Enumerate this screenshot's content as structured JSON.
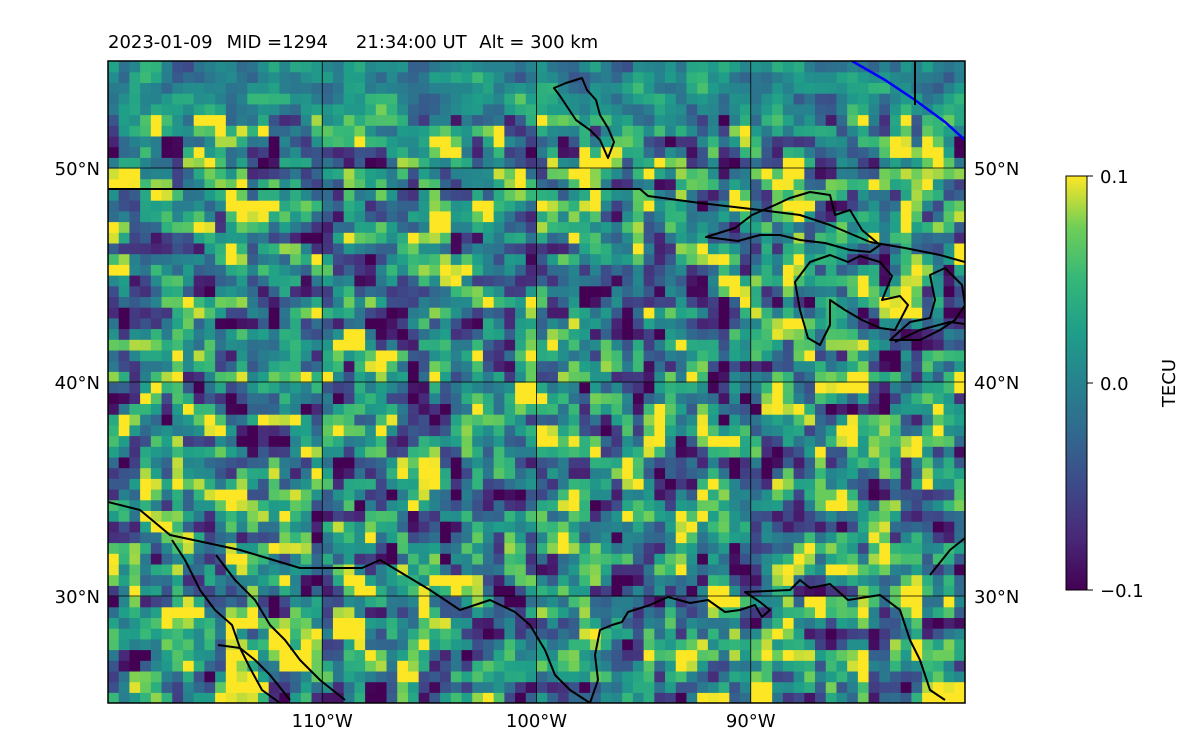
{
  "header": {
    "date": "2023-01-09",
    "mid": "MID =1294",
    "time": "21:34:00  UT",
    "alt": "Alt = 300 km"
  },
  "chart_data": {
    "type": "heatmap",
    "title": "2023-01-09  MID =1294    21:34:00  UT  Alt = 300 km",
    "x_axis": {
      "range": [
        -120,
        -80
      ],
      "ticks": [
        -110,
        -100,
        -90
      ],
      "tick_labels": [
        "110°W",
        "100°W",
        "90°W"
      ]
    },
    "y_axis": {
      "range": [
        25,
        55
      ],
      "ticks": [
        30,
        40,
        50
      ],
      "tick_labels": [
        "30°N",
        "40°N",
        "50°N"
      ]
    },
    "colorbar": {
      "label": "TECU",
      "range": [
        -0.1,
        0.1
      ],
      "ticks": [
        -0.1,
        0.0,
        0.1
      ],
      "tick_labels": [
        "−0.1",
        "0.0",
        "0.1"
      ],
      "colormap": "viridis"
    },
    "grid": true,
    "cell_size_deg": [
      0.5,
      0.5
    ],
    "field": "detrended TEC perturbation (noisy, mean ~0.0 TECU, patches near +0.1 and -0.1)"
  },
  "colors": {
    "coastline": "#000000",
    "boundary_line": "#0000ff",
    "gridline": "#000000"
  }
}
